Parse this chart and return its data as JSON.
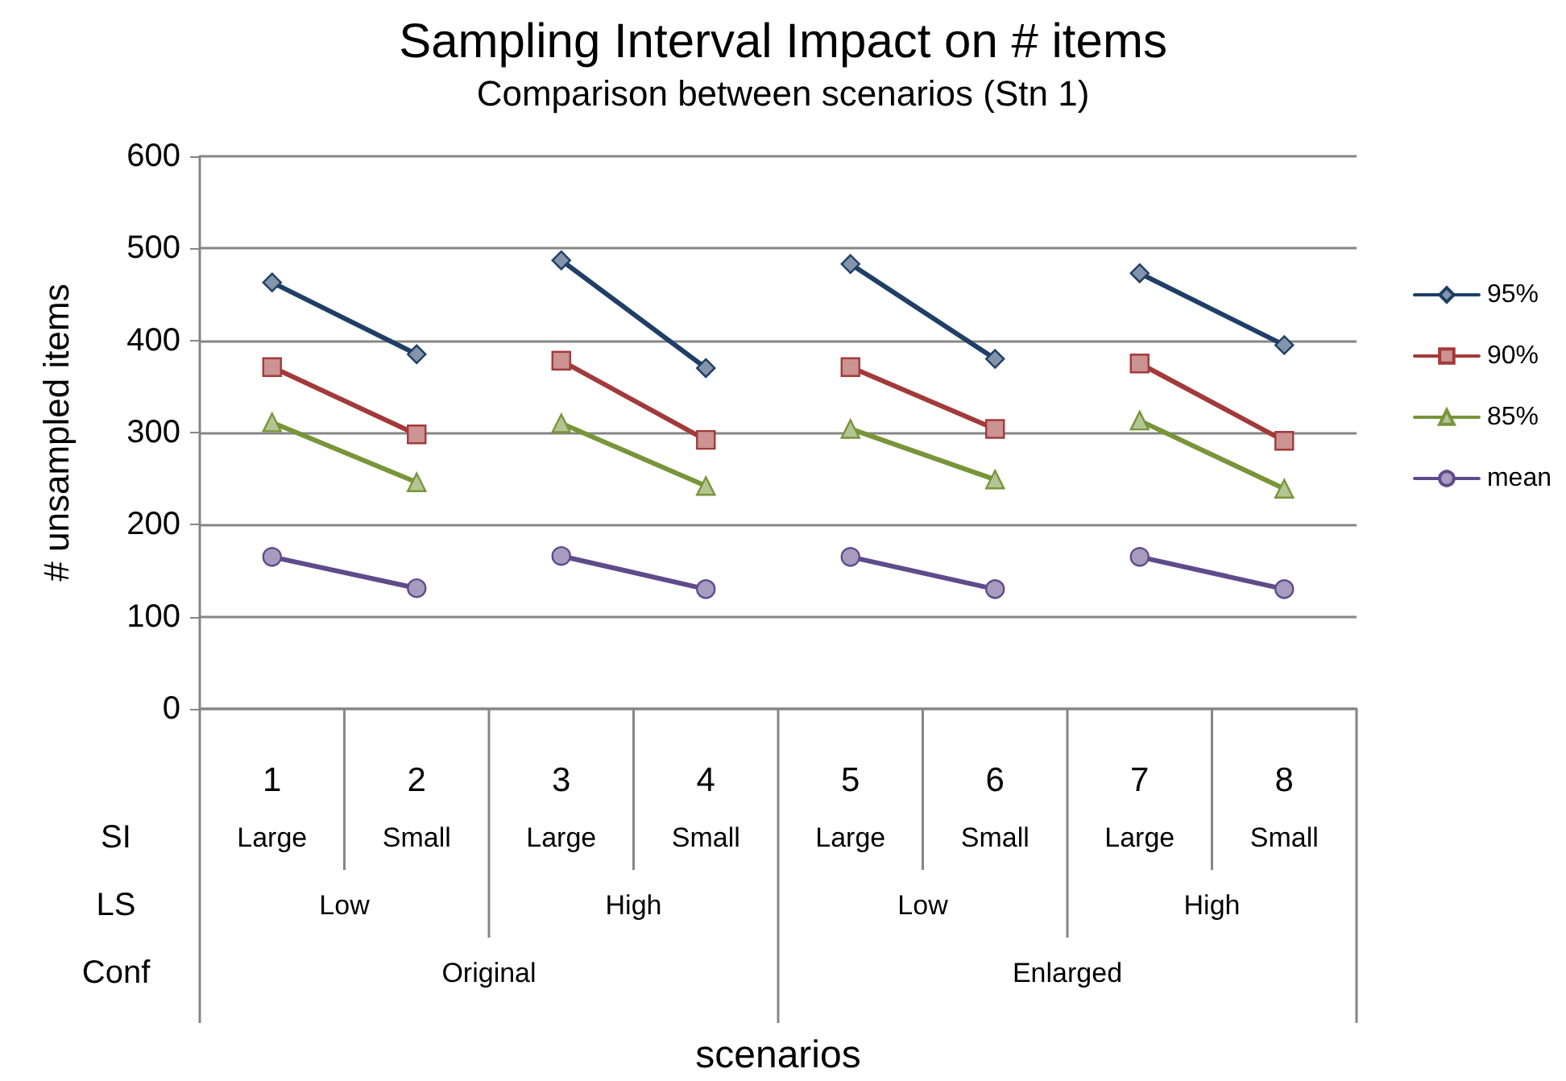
{
  "chart_data": {
    "type": "line",
    "title": "Sampling Interval Impact on # items",
    "subtitle": "Comparison between scenarios (Stn 1)",
    "ylabel": "# unsampled items",
    "categories": [
      "1",
      "2",
      "3",
      "4",
      "5",
      "6",
      "7",
      "8"
    ],
    "series": [
      {
        "name": "95%",
        "color": "#1f3f66",
        "marker": "diamond",
        "values": [
          463,
          385,
          null,
          null,
          null,
          null,
          null,
          null
        ]
      },
      {
        "color": "#1f3f66",
        "marker": "diamond",
        "values": [
          null,
          null,
          487,
          370,
          null,
          null,
          null,
          null
        ]
      },
      {
        "color": "#1f3f66",
        "marker": "diamond",
        "values": [
          null,
          null,
          null,
          null,
          483,
          380,
          null,
          null
        ]
      },
      {
        "color": "#1f3f66",
        "marker": "diamond",
        "values": [
          null,
          null,
          null,
          null,
          null,
          null,
          473,
          395
        ]
      },
      {
        "name": "90%",
        "color": "#a33a3a",
        "marker": "square",
        "values": [
          371,
          298,
          null,
          null,
          null,
          null,
          null,
          null
        ]
      },
      {
        "color": "#a33a3a",
        "marker": "square",
        "values": [
          null,
          null,
          378,
          292,
          null,
          null,
          null,
          null
        ]
      },
      {
        "color": "#a33a3a",
        "marker": "square",
        "values": [
          null,
          null,
          null,
          null,
          371,
          304,
          null,
          null
        ]
      },
      {
        "color": "#a33a3a",
        "marker": "square",
        "values": [
          null,
          null,
          null,
          null,
          null,
          null,
          375,
          291
        ]
      },
      {
        "name": "85%",
        "color": "#77953a",
        "marker": "triangle",
        "values": [
          311,
          246,
          null,
          null,
          null,
          null,
          null,
          null
        ]
      },
      {
        "color": "#77953a",
        "marker": "triangle",
        "values": [
          null,
          null,
          310,
          242,
          null,
          null,
          null,
          null
        ]
      },
      {
        "color": "#77953a",
        "marker": "triangle",
        "values": [
          null,
          null,
          null,
          null,
          304,
          249,
          null,
          null
        ]
      },
      {
        "color": "#77953a",
        "marker": "triangle",
        "values": [
          null,
          null,
          null,
          null,
          null,
          null,
          313,
          239
        ]
      },
      {
        "name": "mean",
        "color": "#5f4b8b",
        "marker": "circle",
        "values": [
          165,
          131,
          null,
          null,
          null,
          null,
          null,
          null
        ]
      },
      {
        "color": "#5f4b8b",
        "marker": "circle",
        "values": [
          null,
          null,
          166,
          130,
          null,
          null,
          null,
          null
        ]
      },
      {
        "color": "#5f4b8b",
        "marker": "circle",
        "values": [
          null,
          null,
          null,
          null,
          165,
          130,
          null,
          null
        ]
      },
      {
        "color": "#5f4b8b",
        "marker": "circle",
        "values": [
          null,
          null,
          null,
          null,
          null,
          null,
          165,
          130
        ]
      }
    ],
    "ylim": [
      0,
      600
    ],
    "yticks": [
      0,
      100,
      200,
      300,
      400,
      500,
      600
    ],
    "grid": "y",
    "legend": "right",
    "annotations": [
      "SI",
      "LS",
      "Conf",
      "Large",
      "Small",
      "Large",
      "Small",
      "Large",
      "Small",
      "Large",
      "Small",
      "Low",
      "High",
      "Low",
      "High",
      "Original",
      "Enlarged",
      "scenarios"
    ]
  }
}
